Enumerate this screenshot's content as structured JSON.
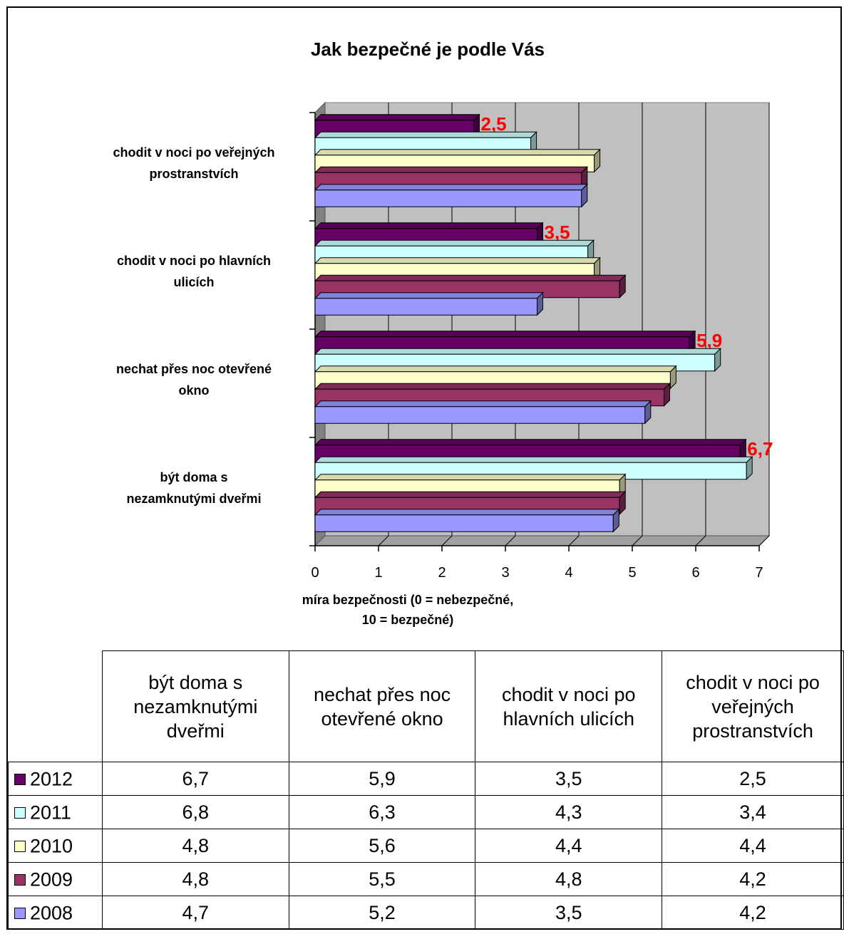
{
  "chart_data": {
    "type": "bar",
    "orientation": "horizontal",
    "title": "Jak bezpečné je podle Vás",
    "xlabel_lines": [
      "míra bezpečnosti (0 = nebezpečné,",
      "10 = bezpečné)"
    ],
    "xlim": [
      0,
      7
    ],
    "x_ticks": [
      "0",
      "1",
      "2",
      "3",
      "4",
      "5",
      "6",
      "7"
    ],
    "categories": [
      "být doma s nezamknutými dveřmi",
      "nechat přes noc otevřené okno",
      "chodit v noci po hlavních ulicích",
      "chodit v noci po veřejných prostranstvích"
    ],
    "category_label_lines": [
      [
        "být doma s",
        "nezamknutými dveřmi"
      ],
      [
        "nechat přes noc otevřené",
        "okno"
      ],
      [
        "chodit v noci po hlavních",
        "ulicích"
      ],
      [
        "chodit v noci po veřejných",
        "prostranstvích"
      ]
    ],
    "series": [
      {
        "name": "2012",
        "color": "#660066",
        "values": [
          6.7,
          5.9,
          3.5,
          2.5
        ]
      },
      {
        "name": "2011",
        "color": "#ccffff",
        "values": [
          6.8,
          6.3,
          4.3,
          3.4
        ]
      },
      {
        "name": "2010",
        "color": "#ffffcc",
        "values": [
          4.8,
          5.6,
          4.4,
          4.4
        ]
      },
      {
        "name": "2009",
        "color": "#993366",
        "values": [
          4.8,
          5.5,
          4.8,
          4.2
        ]
      },
      {
        "name": "2008",
        "color": "#9999ff",
        "values": [
          4.7,
          5.2,
          3.5,
          4.2
        ]
      }
    ],
    "data_labels_series": "2012",
    "data_labels": [
      "6,7",
      "5,9",
      "3,5",
      "2,5"
    ],
    "data_label_color": "#ff0000",
    "grid": true,
    "wall_color": "#c0c0c0",
    "legend_placement": "data-table-below"
  },
  "table": {
    "headers": [
      "být doma s nezamknutými dveřmi",
      "nechat přes noc otevřené okno",
      "chodit v noci po hlavních ulicích",
      "chodit v noci po veřejných prostranstvích"
    ],
    "rows": [
      {
        "year": "2012",
        "color": "#660066",
        "cells": [
          "6,7",
          "5,9",
          "3,5",
          "2,5"
        ]
      },
      {
        "year": "2011",
        "color": "#ccffff",
        "cells": [
          "6,8",
          "6,3",
          "4,3",
          "3,4"
        ]
      },
      {
        "year": "2010",
        "color": "#ffffcc",
        "cells": [
          "4,8",
          "5,6",
          "4,4",
          "4,4"
        ]
      },
      {
        "year": "2009",
        "color": "#993366",
        "cells": [
          "4,8",
          "5,5",
          "4,8",
          "4,2"
        ]
      },
      {
        "year": "2008",
        "color": "#9999ff",
        "cells": [
          "4,7",
          "5,2",
          "3,5",
          "4,2"
        ]
      }
    ]
  }
}
